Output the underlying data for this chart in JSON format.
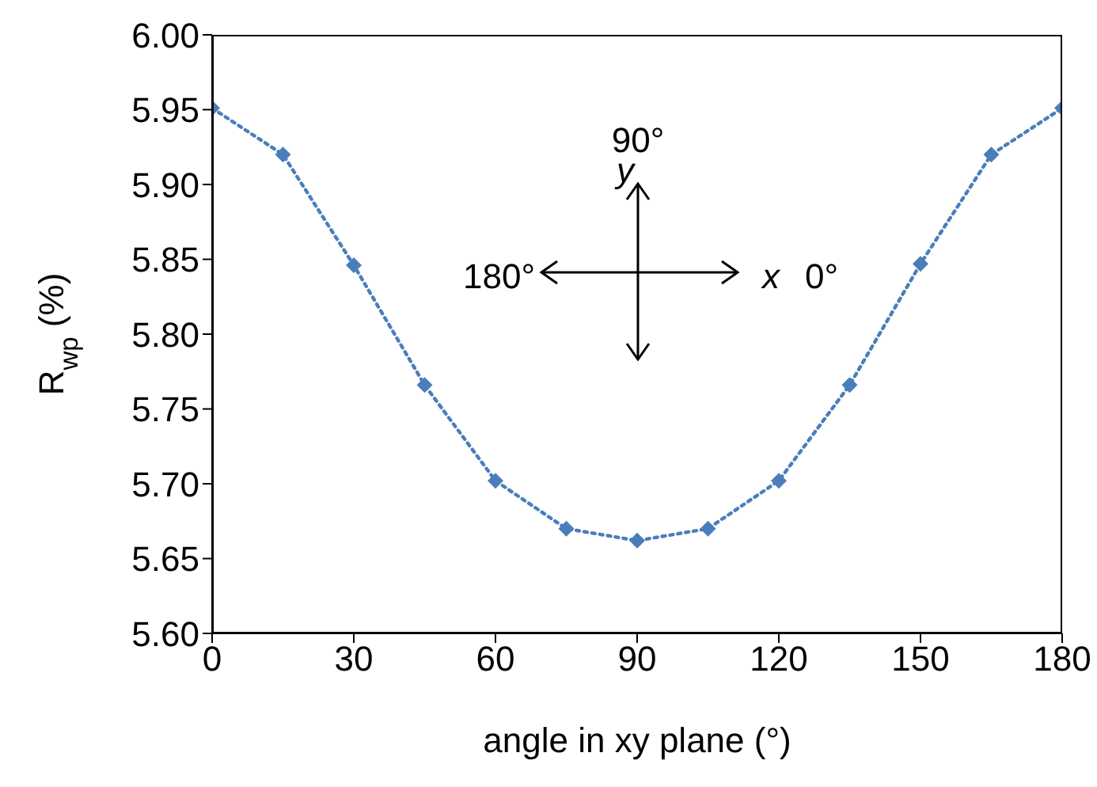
{
  "chart_data": {
    "type": "line",
    "xlabel": "angle in xy plane (°)",
    "ylabel": "R$_{wp}$ (%)",
    "x": [
      0,
      15,
      30,
      45,
      60,
      75,
      90,
      105,
      120,
      135,
      150,
      165,
      180
    ],
    "series": [
      {
        "color": "#4a7ebb",
        "values": [
          5.951,
          5.92,
          5.846,
          5.766,
          5.702,
          5.67,
          5.662,
          5.67,
          5.702,
          5.766,
          5.847,
          5.92,
          5.951
        ]
      }
    ],
    "xlim": [
      0,
      180
    ],
    "xticks": [
      0,
      30,
      60,
      90,
      120,
      150,
      180
    ],
    "ylim": [
      5.6,
      6.0
    ],
    "yticks": [
      {
        "value": 5.6,
        "label": "5.60"
      },
      {
        "value": 5.65,
        "label": "5.65"
      },
      {
        "value": 5.7,
        "label": "5.70"
      },
      {
        "value": 5.75,
        "label": "5.75"
      },
      {
        "value": 5.8,
        "label": "5.80"
      },
      {
        "value": 5.85,
        "label": "5.85"
      },
      {
        "value": 5.9,
        "label": "5.90"
      },
      {
        "value": 5.95,
        "label": "5.95"
      },
      {
        "value": 6.0,
        "label": "6.00"
      }
    ],
    "marker": "diamond",
    "line_style": "dotted",
    "grid": false,
    "legend": false,
    "annotations": [
      "90°",
      "y",
      "180°",
      "x",
      "0°"
    ]
  }
}
